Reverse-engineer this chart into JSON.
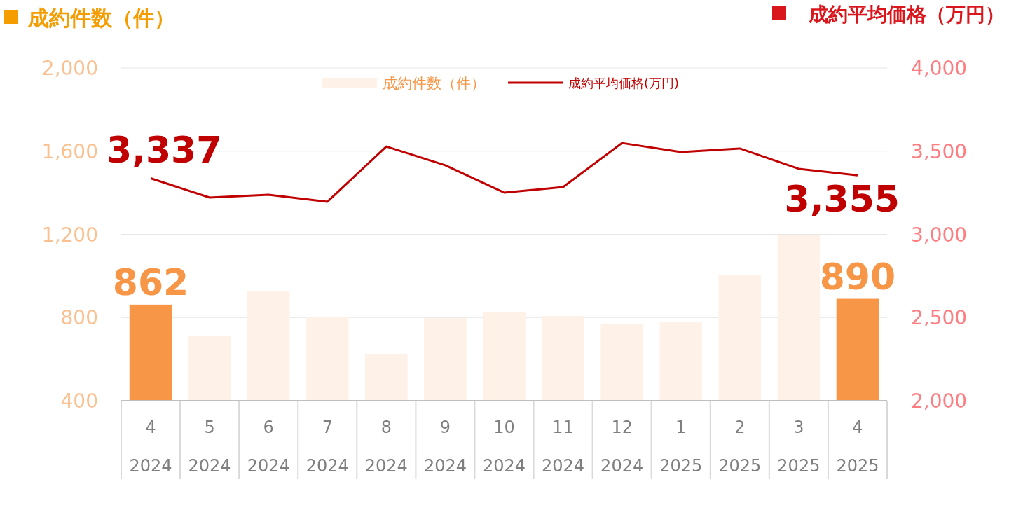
{
  "chart_data": {
    "type": "bar",
    "ylabel": "成約件数（件）",
    "y2label": "成約平均価格（万円）",
    "categories": [
      "4\n2024",
      "5\n2024",
      "6\n2024",
      "7\n2024",
      "8\n2024",
      "9\n2024",
      "10\n2024",
      "11\n2024",
      "12\n2024",
      "1\n2025",
      "2\n2025",
      "3\n2025",
      "4\n2025"
    ],
    "series": [
      {
        "name": "成約件数（件）",
        "color": "#fdf1e8",
        "colors": [
          "#f79646",
          "#fdf1e8",
          "#fdf1e8",
          "#fdf1e8",
          "#fdf1e8",
          "#fdf1e8",
          "#fdf1e8",
          "#fdf1e8",
          "#fdf1e8",
          "#fdf1e8",
          "#fdf1e8",
          "#fdf1e8",
          "#f79646"
        ],
        "values": [
          862,
          713,
          925,
          804,
          622,
          797,
          828,
          808,
          771,
          777,
          1003,
          1198,
          890
        ],
        "value_labels": [
          "862",
          null,
          null,
          null,
          null,
          null,
          null,
          null,
          null,
          null,
          null,
          null,
          "890"
        ]
      },
      {
        "name": "成約平均価格(万円)",
        "type": "line",
        "axis": "y2",
        "color": "#c00000",
        "values": [
          3337,
          3221,
          3238,
          3196,
          3528,
          3415,
          3251,
          3284,
          3549,
          3495,
          3516,
          3394,
          3355
        ],
        "value_labels": [
          "3,337",
          null,
          null,
          null,
          null,
          null,
          null,
          null,
          null,
          null,
          null,
          null,
          "3,355"
        ]
      }
    ],
    "ylim": [
      400,
      2000
    ],
    "yticks": [
      {
        "value": 400,
        "label": "400"
      },
      {
        "value": 800,
        "label": "800"
      },
      {
        "value": 1200,
        "label": "1,200"
      },
      {
        "value": 1600,
        "label": "1,600"
      },
      {
        "value": 2000,
        "label": "2,000"
      }
    ],
    "y2lim": [
      2000,
      4000
    ],
    "y2ticks": [
      {
        "value": 2000,
        "label": "2,000"
      },
      {
        "value": 2500,
        "label": "2,500"
      },
      {
        "value": 3000,
        "label": "3,000"
      },
      {
        "value": 3500,
        "label": "3,500"
      },
      {
        "value": 4000,
        "label": "4,000"
      }
    ],
    "grid": "y",
    "legend": "top"
  }
}
